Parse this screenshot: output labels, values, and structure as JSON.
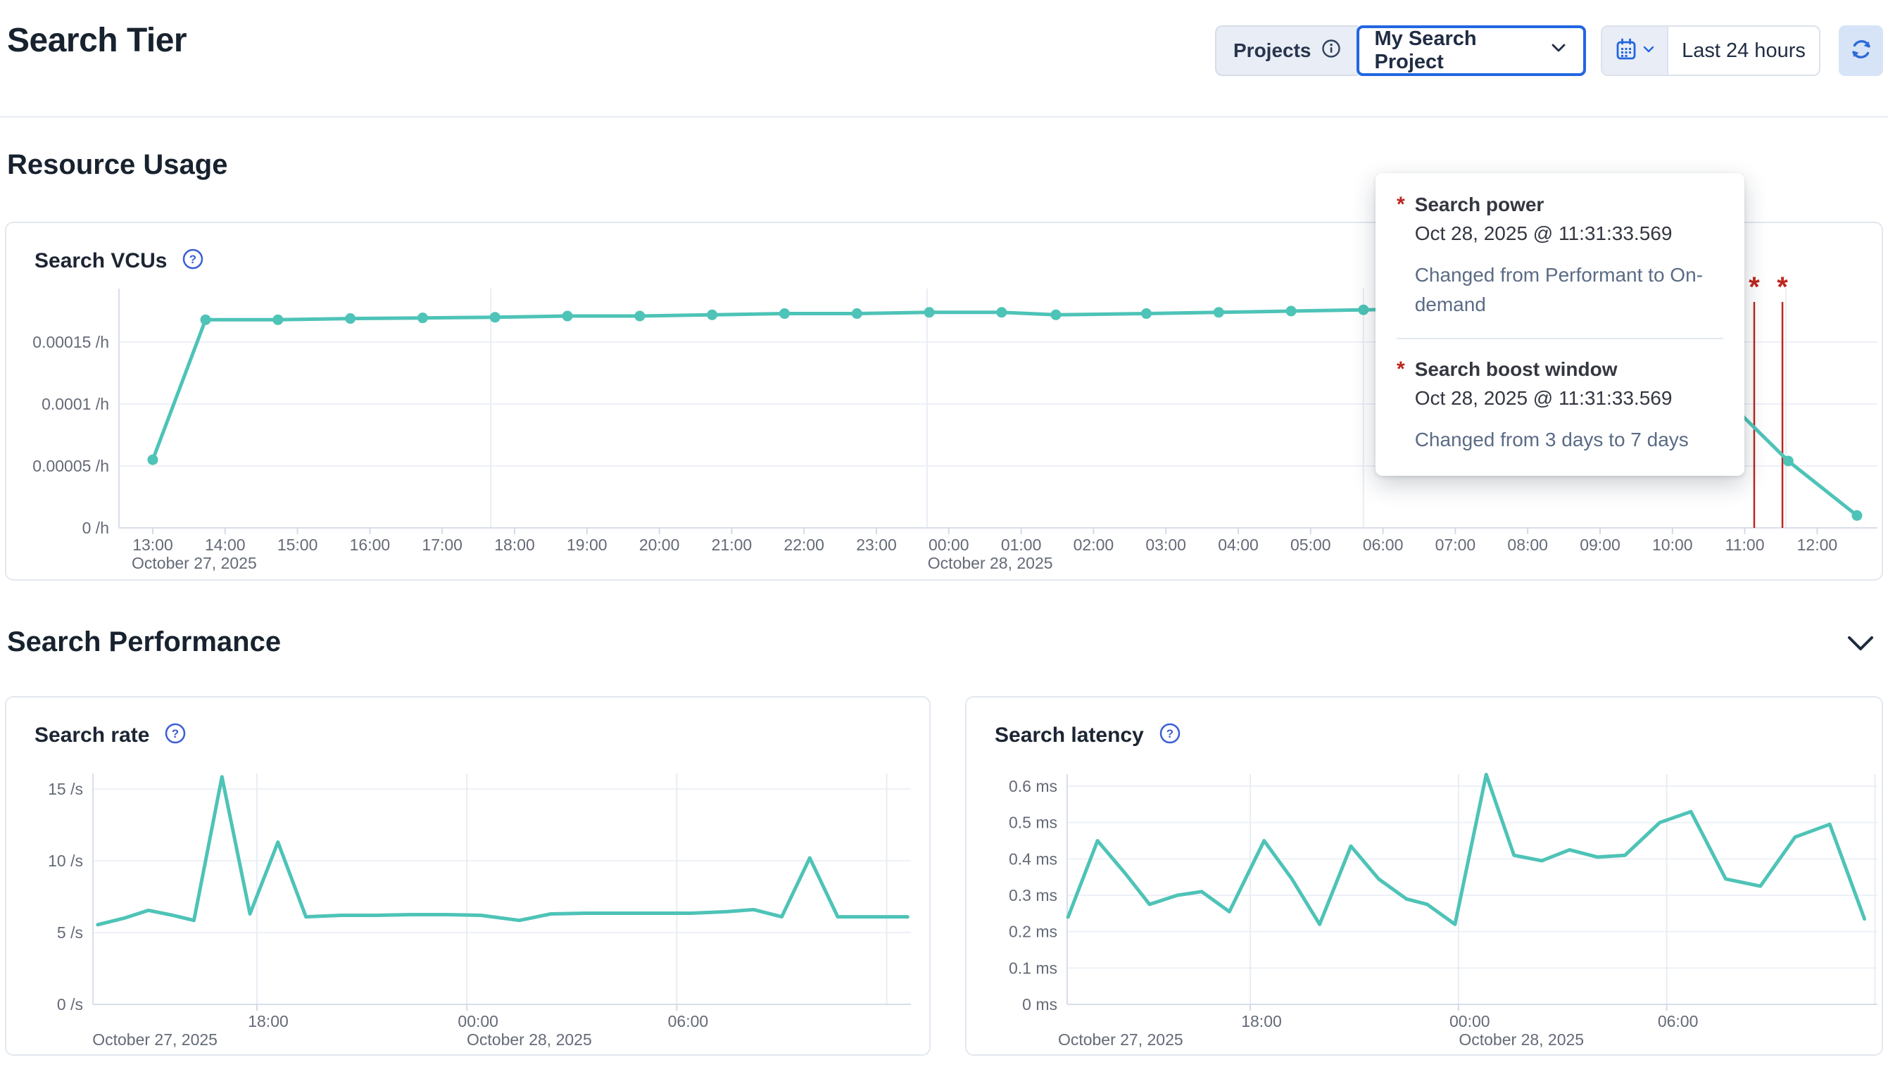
{
  "header": {
    "title": "Search Tier",
    "projects_label": "Projects",
    "project_selected": "My Search Project",
    "time_range": "Last 24 hours"
  },
  "sections": {
    "resource_usage": "Resource Usage",
    "search_performance": "Search Performance"
  },
  "colors": {
    "line": "#4ec3b7",
    "annotation": "#bd271e",
    "accent_blue": "#2266e0",
    "axis_text": "#646a77"
  },
  "tooltip": {
    "items": [
      {
        "marker": "*",
        "title": "Search power",
        "timestamp": "Oct 28, 2025 @ 11:31:33.569",
        "description": "Changed from Performant to On-demand"
      },
      {
        "marker": "*",
        "title": "Search boost window",
        "timestamp": "Oct 28, 2025 @ 11:31:33.569",
        "description": "Changed from 3 days to 7 days"
      }
    ]
  },
  "chart_data": [
    {
      "id": "search-vcus",
      "type": "line",
      "title": "Search VCUs",
      "ylabel": "/h",
      "ylim": [
        0,
        0.000193
      ],
      "y_ticks": [
        {
          "v": 0,
          "label": "0 /h"
        },
        {
          "v": 5e-05,
          "label": "0.00005 /h"
        },
        {
          "v": 0.0001,
          "label": "0.0001 /h"
        },
        {
          "v": 0.00015,
          "label": "0.00015 /h"
        }
      ],
      "x_hour_labels": [
        {
          "h": 13,
          "label": "13:00"
        },
        {
          "h": 14,
          "label": "14:00"
        },
        {
          "h": 15,
          "label": "15:00"
        },
        {
          "h": 16,
          "label": "16:00"
        },
        {
          "h": 17,
          "label": "17:00"
        },
        {
          "h": 18,
          "label": "18:00"
        },
        {
          "h": 19,
          "label": "19:00"
        },
        {
          "h": 20,
          "label": "20:00"
        },
        {
          "h": 21,
          "label": "21:00"
        },
        {
          "h": 22,
          "label": "22:00"
        },
        {
          "h": 23,
          "label": "23:00"
        },
        {
          "h": 24,
          "label": "00:00"
        },
        {
          "h": 25,
          "label": "01:00"
        },
        {
          "h": 26,
          "label": "02:00"
        },
        {
          "h": 27,
          "label": "03:00"
        },
        {
          "h": 28,
          "label": "04:00"
        },
        {
          "h": 29,
          "label": "05:00"
        },
        {
          "h": 30,
          "label": "06:00"
        },
        {
          "h": 31,
          "label": "07:00"
        },
        {
          "h": 32,
          "label": "08:00"
        },
        {
          "h": 33,
          "label": "09:00"
        },
        {
          "h": 34,
          "label": "10:00"
        },
        {
          "h": 35,
          "label": "11:00"
        },
        {
          "h": 36,
          "label": "12:00"
        }
      ],
      "day_labels": [
        {
          "h": 13,
          "text": "October 27, 2025"
        },
        {
          "h": 24,
          "text": "October 28, 2025"
        }
      ],
      "points": [
        [
          13.0,
          5.5e-05
        ],
        [
          13.73,
          0.000168
        ],
        [
          14.73,
          0.000168
        ],
        [
          15.73,
          0.000169
        ],
        [
          16.73,
          0.0001695
        ],
        [
          17.73,
          0.00017
        ],
        [
          18.73,
          0.000171
        ],
        [
          19.73,
          0.000171
        ],
        [
          20.73,
          0.000172
        ],
        [
          21.73,
          0.000173
        ],
        [
          22.73,
          0.000173
        ],
        [
          23.73,
          0.000174
        ],
        [
          24.73,
          0.000174
        ],
        [
          25.48,
          0.000172
        ],
        [
          26.73,
          0.000173
        ],
        [
          27.73,
          0.000174
        ],
        [
          28.73,
          0.000175
        ],
        [
          29.73,
          0.000176
        ],
        [
          30.73,
          0.000177
        ],
        [
          31.73,
          0.000178
        ],
        [
          32.73,
          0.000179
        ],
        [
          33.43,
          0.000179
        ],
        [
          35.6,
          5.4e-05
        ],
        [
          36.55,
          1e-05
        ]
      ],
      "markers": true,
      "annotations": {
        "symbol": "*",
        "hours": [
          35.13,
          35.52
        ]
      }
    },
    {
      "id": "search-rate",
      "type": "line",
      "title": "Search rate",
      "ylabel": "/s",
      "ylim": [
        0,
        16.1
      ],
      "y_ticks": [
        {
          "v": 0,
          "label": "0 /s"
        },
        {
          "v": 5,
          "label": "5 /s"
        },
        {
          "v": 10,
          "label": "10 /s"
        },
        {
          "v": 15,
          "label": "15 /s"
        }
      ],
      "x_hour_labels": [
        {
          "h": 18,
          "label": "18:00"
        },
        {
          "h": 24,
          "label": "00:00"
        },
        {
          "h": 30,
          "label": "06:00"
        }
      ],
      "day_labels": [
        {
          "h": 13.9,
          "text": "October 27, 2025"
        },
        {
          "h": 24.6,
          "text": "October 28, 2025"
        }
      ],
      "points": [
        [
          13.45,
          5.55
        ],
        [
          14.2,
          6.0
        ],
        [
          14.9,
          6.55
        ],
        [
          15.6,
          6.2
        ],
        [
          16.2,
          5.85
        ],
        [
          17.0,
          15.85
        ],
        [
          17.8,
          6.3
        ],
        [
          18.6,
          11.3
        ],
        [
          19.4,
          6.1
        ],
        [
          20.4,
          6.2
        ],
        [
          21.4,
          6.2
        ],
        [
          22.4,
          6.25
        ],
        [
          23.4,
          6.25
        ],
        [
          24.4,
          6.2
        ],
        [
          25.5,
          5.85
        ],
        [
          26.4,
          6.3
        ],
        [
          27.4,
          6.35
        ],
        [
          28.4,
          6.35
        ],
        [
          29.4,
          6.35
        ],
        [
          30.4,
          6.35
        ],
        [
          31.4,
          6.45
        ],
        [
          32.2,
          6.6
        ],
        [
          33.0,
          6.1
        ],
        [
          33.8,
          10.2
        ],
        [
          34.6,
          6.1
        ],
        [
          35.6,
          6.1
        ],
        [
          36.6,
          6.1
        ]
      ],
      "markers": false
    },
    {
      "id": "search-latency",
      "type": "line",
      "title": "Search latency",
      "ylabel": "ms",
      "ylim": [
        0,
        0.635
      ],
      "y_ticks": [
        {
          "v": 0,
          "label": "0 ms"
        },
        {
          "v": 0.1,
          "label": "0.1 ms"
        },
        {
          "v": 0.2,
          "label": "0.2 ms"
        },
        {
          "v": 0.3,
          "label": "0.3 ms"
        },
        {
          "v": 0.4,
          "label": "0.4 ms"
        },
        {
          "v": 0.5,
          "label": "0.5 ms"
        },
        {
          "v": 0.6,
          "label": "0.6 ms"
        }
      ],
      "x_hour_labels": [
        {
          "h": 18,
          "label": "18:00"
        },
        {
          "h": 24,
          "label": "00:00"
        },
        {
          "h": 30,
          "label": "06:00"
        }
      ],
      "day_labels": [
        {
          "h": 13.07,
          "text": "October 27, 2025"
        },
        {
          "h": 24.62,
          "text": "October 28, 2025"
        }
      ],
      "points": [
        [
          12.75,
          0.24
        ],
        [
          13.6,
          0.45
        ],
        [
          14.4,
          0.36
        ],
        [
          15.1,
          0.275
        ],
        [
          15.9,
          0.3
        ],
        [
          16.6,
          0.31
        ],
        [
          17.4,
          0.255
        ],
        [
          18.4,
          0.45
        ],
        [
          19.2,
          0.345
        ],
        [
          20.0,
          0.22
        ],
        [
          20.9,
          0.435
        ],
        [
          21.7,
          0.345
        ],
        [
          22.5,
          0.29
        ],
        [
          23.1,
          0.275
        ],
        [
          23.9,
          0.22
        ],
        [
          24.8,
          0.632
        ],
        [
          25.6,
          0.41
        ],
        [
          26.4,
          0.395
        ],
        [
          27.2,
          0.425
        ],
        [
          28.0,
          0.405
        ],
        [
          28.8,
          0.41
        ],
        [
          29.8,
          0.5
        ],
        [
          30.7,
          0.53
        ],
        [
          31.7,
          0.345
        ],
        [
          32.7,
          0.325
        ],
        [
          33.7,
          0.46
        ],
        [
          34.7,
          0.495
        ],
        [
          35.7,
          0.235
        ]
      ],
      "markers": false
    }
  ]
}
